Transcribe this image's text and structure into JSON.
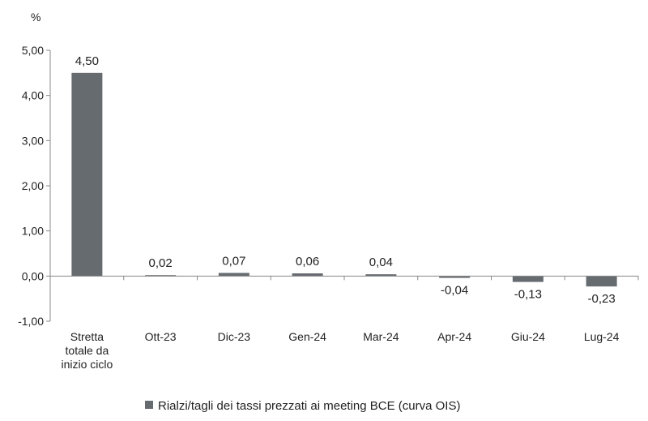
{
  "chart_data": {
    "type": "bar",
    "y_unit": "%",
    "categories": [
      [
        "Stretta",
        "totale da",
        "inizio ciclo"
      ],
      [
        "Ott-23"
      ],
      [
        "Dic-23"
      ],
      [
        "Gen-24"
      ],
      [
        "Mar-24"
      ],
      [
        "Apr-24"
      ],
      [
        "Giu-24"
      ],
      [
        "Lug-24"
      ]
    ],
    "series": [
      {
        "name": "Rialzi/tagli dei tassi prezzati ai meeting BCE (curva OIS)",
        "color": "#666b70",
        "values": [
          4.5,
          0.02,
          0.07,
          0.06,
          0.04,
          -0.04,
          -0.13,
          -0.23
        ],
        "labels": [
          "4,50",
          "0,02",
          "0,07",
          "0,06",
          "0,04",
          "-0,04",
          "-0,13",
          "-0,23"
        ]
      }
    ],
    "ylim": [
      -1.0,
      5.0
    ],
    "yticks": [
      -1.0,
      0.0,
      1.0,
      2.0,
      3.0,
      4.0,
      5.0
    ],
    "ytick_labels": [
      "-1,00",
      "0,00",
      "1,00",
      "2,00",
      "3,00",
      "4,00",
      "5,00"
    ],
    "legend_position": "bottom",
    "grid": false
  }
}
